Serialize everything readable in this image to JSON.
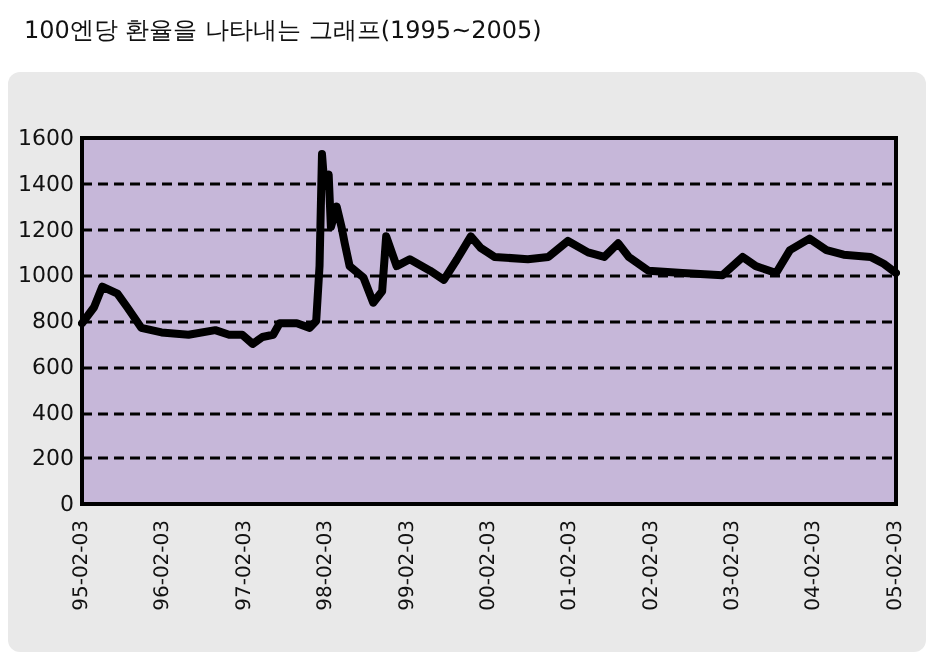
{
  "chart_data": {
    "type": "line",
    "title": "100엔당 환율을 나타내는 그래프(1995~2005)",
    "x": [
      "1995-02-03",
      "1995-03-29",
      "1995-05-05",
      "1995-07-12",
      "1995-08-25",
      "1995-10-27",
      "1996-01-26",
      "1996-05-26",
      "1996-09-23",
      "1996-11-24",
      "1997-01-22",
      "1997-03-10",
      "1997-04-23",
      "1997-06-10",
      "1997-07-09",
      "1997-09-24",
      "1997-11-21",
      "1997-12-20",
      "1998-01-04",
      "1998-01-15",
      "1998-01-26",
      "1998-02-14",
      "1998-02-24",
      "1998-03-22",
      "1998-04-13",
      "1998-04-27",
      "1998-05-19",
      "1998-07-20",
      "1998-09-02",
      "1998-10-12",
      "1998-10-30",
      "1998-12-16",
      "1999-02-13",
      "1999-05-15",
      "1999-07-16",
      "1999-09-13",
      "1999-11-14",
      "1999-12-28",
      "2000-02-28",
      "2000-07-27",
      "2000-10-27",
      "2001-01-23",
      "2001-04-23",
      "2001-07-05",
      "2001-09-05",
      "2001-10-23",
      "2002-01-19",
      "2002-06-21",
      "2002-12-17",
      "2003-03-18",
      "2003-05-16",
      "2003-08-15",
      "2003-10-16",
      "2004-01-12",
      "2004-03-28",
      "2004-06-13",
      "2004-10-12",
      "2004-12-10",
      "2005-02-03"
    ],
    "series": [
      {
        "color": "#000000",
        "values": [
          790,
          860,
          950,
          920,
          860,
          770,
          750,
          740,
          760,
          740,
          740,
          700,
          730,
          740,
          790,
          790,
          770,
          800,
          1040,
          1530,
          1390,
          1440,
          1210,
          1300,
          1210,
          1140,
          1040,
          990,
          880,
          930,
          1170,
          1040,
          1070,
          1020,
          980,
          1070,
          1170,
          1120,
          1080,
          1070,
          1080,
          1150,
          1100,
          1080,
          1140,
          1080,
          1020,
          1010,
          1000,
          1080,
          1040,
          1010,
          1110,
          1160,
          1110,
          1090,
          1080,
          1050,
          1010
        ]
      }
    ],
    "xlim": [
      "1995-02-03",
      "2005-02-03"
    ],
    "xticks": [
      {
        "value": "1995-02-03",
        "label": "95-02-03"
      },
      {
        "value": "1996-02-03",
        "label": "96-02-03"
      },
      {
        "value": "1997-02-03",
        "label": "97-02-03"
      },
      {
        "value": "1998-02-03",
        "label": "98-02-03"
      },
      {
        "value": "1999-02-03",
        "label": "99-02-03"
      },
      {
        "value": "2000-02-03",
        "label": "00-02-03"
      },
      {
        "value": "2001-02-03",
        "label": "01-02-03"
      },
      {
        "value": "2002-02-03",
        "label": "02-02-03"
      },
      {
        "value": "2003-02-03",
        "label": "03-02-03"
      },
      {
        "value": "2004-02-03",
        "label": "04-02-03"
      },
      {
        "value": "2005-02-03",
        "label": "05-02-03"
      }
    ],
    "ylim": [
      0,
      1600
    ],
    "yticks": [
      0,
      200,
      400,
      600,
      800,
      1000,
      1200,
      1400,
      1600
    ],
    "grid": "y",
    "marker": "none",
    "line_style": "solid"
  }
}
